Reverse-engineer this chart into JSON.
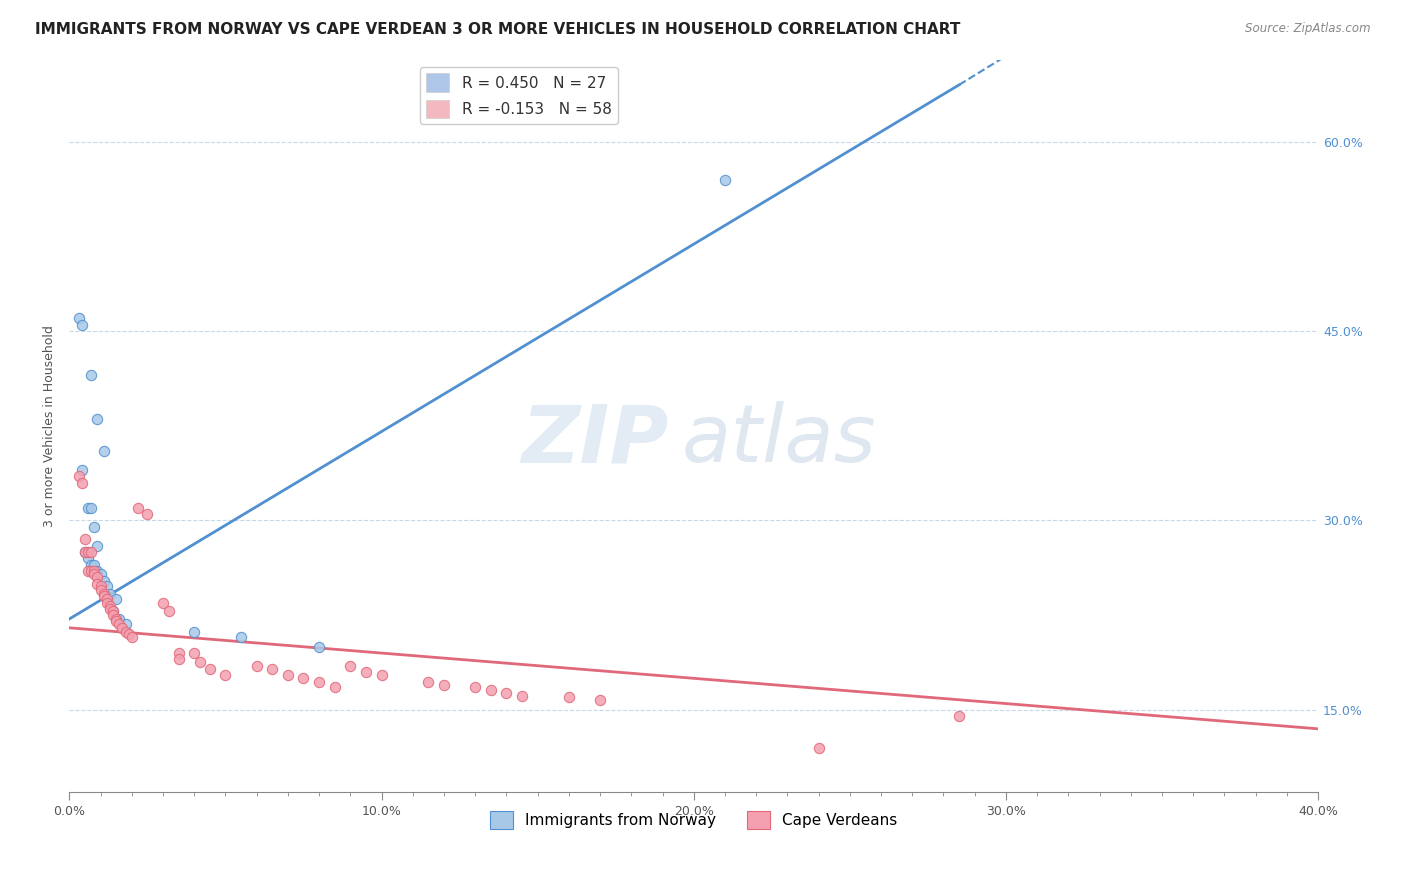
{
  "title": "IMMIGRANTS FROM NORWAY VS CAPE VERDEAN 3 OR MORE VEHICLES IN HOUSEHOLD CORRELATION CHART",
  "source": "Source: ZipAtlas.com",
  "ylabel": "3 or more Vehicles in Household",
  "xmin": 0.0,
  "xmax": 0.4,
  "ymin": 0.085,
  "ymax": 0.665,
  "yticks": [
    0.15,
    0.3,
    0.45,
    0.6
  ],
  "ytick_labels": [
    "15.0%",
    "30.0%",
    "45.0%",
    "60.0%"
  ],
  "xticks": [
    0.0,
    0.1,
    0.2,
    0.3,
    0.4
  ],
  "xtick_labels": [
    "0.0%",
    "10.0%",
    "20.0%",
    "30.0%",
    "40.0%"
  ],
  "legend_entries": [
    {
      "label": "R = 0.450   N = 27",
      "color": "#aec6e8"
    },
    {
      "label": "R = -0.153   N = 58",
      "color": "#f4b8c1"
    }
  ],
  "legend_bottom": [
    "Immigrants from Norway",
    "Cape Verdeans"
  ],
  "norway_color": "#a8c8e8",
  "capeverde_color": "#f4a0b0",
  "norway_line_color": "#5090d0",
  "capeverde_line_color": "#e06878",
  "norway_scatter": [
    [
      0.003,
      0.46
    ],
    [
      0.004,
      0.455
    ],
    [
      0.007,
      0.415
    ],
    [
      0.009,
      0.38
    ],
    [
      0.011,
      0.355
    ],
    [
      0.004,
      0.34
    ],
    [
      0.006,
      0.31
    ],
    [
      0.007,
      0.31
    ],
    [
      0.008,
      0.295
    ],
    [
      0.009,
      0.28
    ],
    [
      0.005,
      0.275
    ],
    [
      0.006,
      0.27
    ],
    [
      0.007,
      0.265
    ],
    [
      0.008,
      0.265
    ],
    [
      0.009,
      0.26
    ],
    [
      0.01,
      0.258
    ],
    [
      0.011,
      0.252
    ],
    [
      0.012,
      0.248
    ],
    [
      0.013,
      0.242
    ],
    [
      0.015,
      0.238
    ],
    [
      0.014,
      0.228
    ],
    [
      0.016,
      0.222
    ],
    [
      0.018,
      0.218
    ],
    [
      0.04,
      0.212
    ],
    [
      0.055,
      0.208
    ],
    [
      0.08,
      0.2
    ],
    [
      0.21,
      0.57
    ]
  ],
  "capeverde_scatter": [
    [
      0.003,
      0.335
    ],
    [
      0.004,
      0.33
    ],
    [
      0.005,
      0.285
    ],
    [
      0.005,
      0.275
    ],
    [
      0.006,
      0.275
    ],
    [
      0.007,
      0.275
    ],
    [
      0.006,
      0.26
    ],
    [
      0.007,
      0.26
    ],
    [
      0.008,
      0.26
    ],
    [
      0.008,
      0.258
    ],
    [
      0.009,
      0.255
    ],
    [
      0.009,
      0.25
    ],
    [
      0.01,
      0.248
    ],
    [
      0.01,
      0.245
    ],
    [
      0.011,
      0.242
    ],
    [
      0.011,
      0.24
    ],
    [
      0.012,
      0.238
    ],
    [
      0.012,
      0.235
    ],
    [
      0.013,
      0.232
    ],
    [
      0.013,
      0.23
    ],
    [
      0.014,
      0.228
    ],
    [
      0.014,
      0.225
    ],
    [
      0.015,
      0.222
    ],
    [
      0.015,
      0.22
    ],
    [
      0.016,
      0.218
    ],
    [
      0.017,
      0.215
    ],
    [
      0.018,
      0.212
    ],
    [
      0.019,
      0.21
    ],
    [
      0.02,
      0.208
    ],
    [
      0.022,
      0.31
    ],
    [
      0.025,
      0.305
    ],
    [
      0.03,
      0.235
    ],
    [
      0.032,
      0.228
    ],
    [
      0.035,
      0.195
    ],
    [
      0.035,
      0.19
    ],
    [
      0.04,
      0.195
    ],
    [
      0.042,
      0.188
    ],
    [
      0.045,
      0.182
    ],
    [
      0.05,
      0.178
    ],
    [
      0.06,
      0.185
    ],
    [
      0.065,
      0.182
    ],
    [
      0.07,
      0.178
    ],
    [
      0.075,
      0.175
    ],
    [
      0.08,
      0.172
    ],
    [
      0.085,
      0.168
    ],
    [
      0.09,
      0.185
    ],
    [
      0.095,
      0.18
    ],
    [
      0.1,
      0.178
    ],
    [
      0.115,
      0.172
    ],
    [
      0.12,
      0.17
    ],
    [
      0.13,
      0.168
    ],
    [
      0.135,
      0.166
    ],
    [
      0.14,
      0.163
    ],
    [
      0.145,
      0.161
    ],
    [
      0.16,
      0.16
    ],
    [
      0.17,
      0.158
    ],
    [
      0.24,
      0.12
    ],
    [
      0.285,
      0.145
    ]
  ],
  "norway_line_solid": [
    [
      0.0,
      0.222
    ],
    [
      0.285,
      0.645
    ]
  ],
  "norway_line_dashed": [
    [
      0.285,
      0.645
    ],
    [
      0.4,
      0.82
    ]
  ],
  "capeverde_line": [
    [
      0.0,
      0.215
    ],
    [
      0.4,
      0.135
    ]
  ],
  "watermark_zip": "ZIP",
  "watermark_atlas": "atlas",
  "background_color": "#ffffff",
  "grid_color": "#c8d8e8",
  "title_fontsize": 11,
  "axis_label_fontsize": 9,
  "tick_fontsize": 9,
  "legend_fontsize": 11
}
